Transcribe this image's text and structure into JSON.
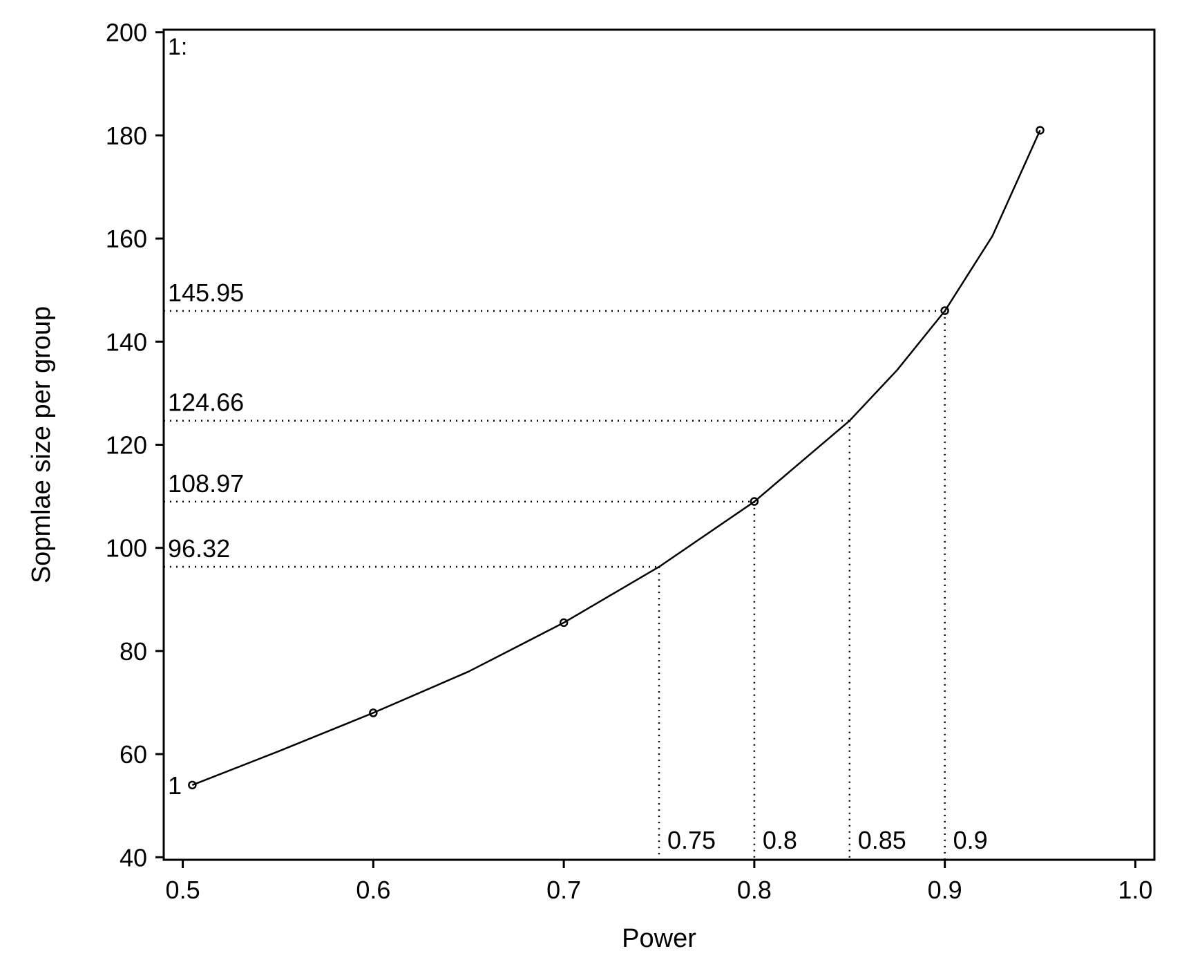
{
  "chart_data": {
    "type": "line",
    "xlabel": "Power",
    "ylabel": "Sopmlae size per group",
    "xlim": [
      0.49,
      1.01
    ],
    "ylim": [
      39.5,
      200.5
    ],
    "x_ticks": [
      0.5,
      0.6,
      0.7,
      0.8,
      0.9,
      1.0
    ],
    "x_tick_labels": [
      "0.5",
      "0.6",
      "0.7",
      "0.8",
      "0.9",
      "1.0"
    ],
    "y_ticks": [
      40,
      60,
      80,
      100,
      120,
      140,
      160,
      180,
      200
    ],
    "y_tick_labels": [
      "40",
      "60",
      "80",
      "100",
      "120",
      "140",
      "160",
      "180",
      "200"
    ],
    "corner_label": "1:",
    "grid": false,
    "series": [
      {
        "name": "1",
        "markers": {
          "x": [
            0.505,
            0.6,
            0.7,
            0.8,
            0.9,
            0.95
          ],
          "y": [
            54,
            68,
            85.5,
            109,
            146,
            181
          ]
        },
        "curve": {
          "x": [
            0.505,
            0.55,
            0.6,
            0.65,
            0.7,
            0.75,
            0.8,
            0.85,
            0.875,
            0.9,
            0.925,
            0.95
          ],
          "y": [
            54,
            60.5,
            68,
            76,
            85.5,
            96.32,
            108.97,
            124.66,
            134.5,
            145.95,
            160.5,
            181
          ]
        }
      }
    ],
    "reference_lines": [
      {
        "x": 0.75,
        "y": 96.32,
        "x_label": "0.75",
        "y_label": "96.32"
      },
      {
        "x": 0.8,
        "y": 108.97,
        "x_label": "0.8",
        "y_label": "108.97"
      },
      {
        "x": 0.85,
        "y": 124.66,
        "x_label": "0.85",
        "y_label": "124.66"
      },
      {
        "x": 0.9,
        "y": 145.95,
        "x_label": "0.9",
        "y_label": "145.95"
      }
    ]
  }
}
